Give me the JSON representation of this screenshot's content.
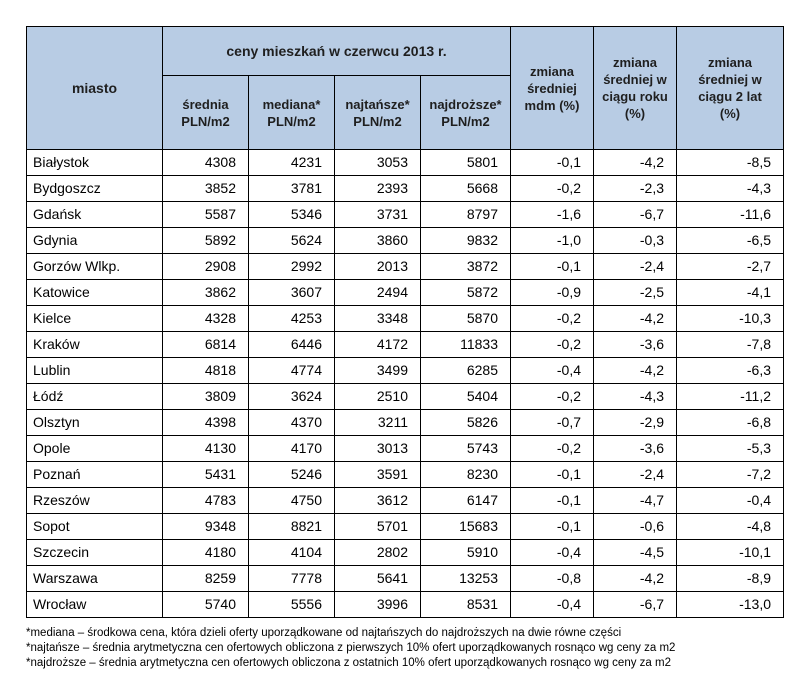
{
  "header": {
    "city": "miasto",
    "group": "ceny mieszkań w czerwcu 2013 r.",
    "avg": [
      "średnia",
      "PLN/m2"
    ],
    "median": [
      "mediana*",
      "PLN/m2"
    ],
    "cheapest": [
      "najtańsze*",
      "PLN/m2"
    ],
    "expensive": [
      "najdroższe*",
      "PLN/m2"
    ],
    "chg_mdm": [
      "zmiana",
      "średniej",
      "mdm (%)"
    ],
    "chg_year": [
      "zmiana",
      "średniej w",
      "ciągu roku",
      "(%)"
    ],
    "chg_2y": [
      "zmiana",
      "średniej w",
      "ciągu 2 lat",
      "(%)"
    ]
  },
  "rows": [
    [
      "Białystok",
      "4308",
      "4231",
      "3053",
      "5801",
      "-0,1",
      "-4,2",
      "-8,5"
    ],
    [
      "Bydgoszcz",
      "3852",
      "3781",
      "2393",
      "5668",
      "-0,2",
      "-2,3",
      "-4,3"
    ],
    [
      "Gdańsk",
      "5587",
      "5346",
      "3731",
      "8797",
      "-1,6",
      "-6,7",
      "-11,6"
    ],
    [
      "Gdynia",
      "5892",
      "5624",
      "3860",
      "9832",
      "-1,0",
      "-0,3",
      "-6,5"
    ],
    [
      "Gorzów Wlkp.",
      "2908",
      "2992",
      "2013",
      "3872",
      "-0,1",
      "-2,4",
      "-2,7"
    ],
    [
      "Katowice",
      "3862",
      "3607",
      "2494",
      "5872",
      "-0,9",
      "-2,5",
      "-4,1"
    ],
    [
      "Kielce",
      "4328",
      "4253",
      "3348",
      "5870",
      "-0,2",
      "-4,2",
      "-10,3"
    ],
    [
      "Kraków",
      "6814",
      "6446",
      "4172",
      "11833",
      "-0,2",
      "-3,6",
      "-7,8"
    ],
    [
      "Lublin",
      "4818",
      "4774",
      "3499",
      "6285",
      "-0,4",
      "-4,2",
      "-6,3"
    ],
    [
      "Łódź",
      "3809",
      "3624",
      "2510",
      "5404",
      "-0,2",
      "-4,3",
      "-11,2"
    ],
    [
      "Olsztyn",
      "4398",
      "4370",
      "3211",
      "5826",
      "-0,7",
      "-2,9",
      "-6,8"
    ],
    [
      "Opole",
      "4130",
      "4170",
      "3013",
      "5743",
      "-0,2",
      "-3,6",
      "-5,3"
    ],
    [
      "Poznań",
      "5431",
      "5246",
      "3591",
      "8230",
      "-0,1",
      "-2,4",
      "-7,2"
    ],
    [
      "Rzeszów",
      "4783",
      "4750",
      "3612",
      "6147",
      "-0,1",
      "-4,7",
      "-0,4"
    ],
    [
      "Sopot",
      "9348",
      "8821",
      "5701",
      "15683",
      "-0,1",
      "-0,6",
      "-4,8"
    ],
    [
      "Szczecin",
      "4180",
      "4104",
      "2802",
      "5910",
      "-0,4",
      "-4,5",
      "-10,1"
    ],
    [
      "Warszawa",
      "8259",
      "7778",
      "5641",
      "13253",
      "-0,8",
      "-4,2",
      "-8,9"
    ],
    [
      "Wrocław",
      "5740",
      "5556",
      "3996",
      "8531",
      "-0,4",
      "-6,7",
      "-13,0"
    ]
  ],
  "notes": [
    "*mediana – środkowa cena, która dzieli oferty uporządkowane od najtańszych do najdroższych na dwie równe części",
    "*najtańsze – średnia arytmetyczna cen ofertowych obliczona z pierwszych 10% ofert uporządkowanych rosnąco wg ceny za m2",
    "*najdroższe – średnia arytmetyczna cen ofertowych obliczona z ostatnich 10% ofert uporządkowanych rosnąco wg ceny za m2"
  ]
}
